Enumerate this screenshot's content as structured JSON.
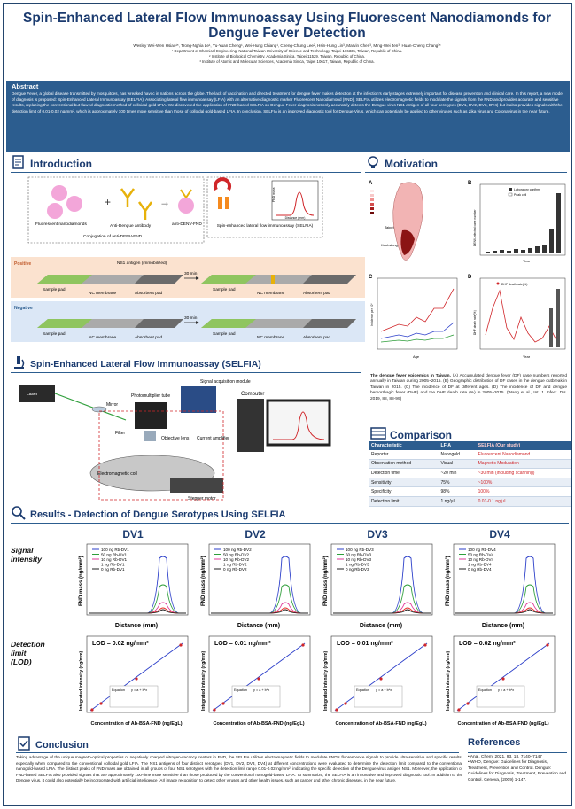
{
  "header": {
    "title_line1": "Spin-Enhanced Lateral Flow Immunoassay Using Fluorescent Nanodiamonds for",
    "title_line2": "Dengue Fever Detection",
    "authors": "Wesley Wei-Wen Hsiao¹*, Trong-Nghia Le¹, Yu-Yuan Cheng¹, Wei-Hung Chiang¹, Cheng-Chung Lee², Hsin-Hung Lin³, Marvin Chen³, Ming-Wei Jen³, Huan-Cheng Chang³*",
    "affil1": "¹ Department of Chemical Engineering, National Taiwan University of Science and Technology, Taipei 106335, Taiwan, Republic of China.",
    "affil2": "² Institute of Biological Chemistry, Academia Sinica, Taipei 11529, Taiwan, Republic of China.",
    "affil3": "³ Institute of Atomic and Molecular Sciences, Academia Sinica, Taipei 10617, Taiwan, Republic of China."
  },
  "abstract": {
    "heading": "Abstract",
    "text": "Dengue Fever, a global disease transmitted by mosquitoes, has wreaked havoc in nations across the globe. The lack of vaccination and directed treatment for dengue fever makes detection at the infection's early stages extremely important for disease prevention and clinical care. In this report, a new model of diagnosis is proposed: Spin-Enhanced Lateral Immunoassay (SELFIA). Associating lateral flow immunoassay (LFIA) with an alternative diagnostic marker Fluorescent Nanodiamond (FND), SELFIA utilizes electromagnetic fields to modulate the signals from the FND and provides accurate and sensitive results, replacing the conventional but flawed diagnostic method of colloidal gold LFIA. We discovered the application of FND-based SELFIA on Dengue Fever diagnosis not only accurately detects the Dengue virus NS1 antigen of all four serotypes (DV1, DV2, DV3, DV4) but it also provides signals with the detection limit of 0.01-0.02 ng/mm², which is approximately 100 times more sensitive than those of colloidal gold-based LFIA. In conclusion, SELFIA is an improved diagnostic tool for Dengue Virus, which can potentially be applied to other viruses such as Zika virus and Coronavirus in the near future."
  },
  "intro": {
    "heading": "Introduction",
    "fnd": "Fluorescent nanodiamonds",
    "antibody": "Anti-Dengue antibody",
    "anti_fnd": "anti-DENV-FND",
    "conjugation": "Conjugation of anti-DENV-FND",
    "selfia_box": "Spin-enhanced lateral flow immunoassay (SELFIA)",
    "ylab": "FND mass",
    "xlab": "Distance (mm)",
    "positive": "Positive",
    "negative": "Negative",
    "ns1": "NS1 antigen (immobilized)",
    "sample_pad": "Sample pad",
    "nc_membrane": "NC membrane",
    "absorbent_pad": "Absorbent pad",
    "time": "30 min"
  },
  "motivation": {
    "heading": "Motivation",
    "panel_a": "A",
    "panel_b": "B",
    "panel_c": "C",
    "panel_d": "D",
    "taipei": "Taipei",
    "kaohsiung": "Kaohsiung",
    "legend_b1": "Laboratory confirm",
    "legend_b2": "Peak cell",
    "ylab_b": "DENV-infected case number",
    "ylab_c": "Incidence per 10⁵",
    "ylab_d": "DHF death rate(%)",
    "xlab": "Year",
    "legend_d": "DHF death rate(%)",
    "age_label": "Age",
    "caption_bold": "The dengue fever epidemics in Taiwan.",
    "caption": " (A) Accumulated dengue fever (DF) case numbers reported annually in Taiwan during 2005~2015. (B) Geographic distribution of DF cases in the dengue outbreak in Taiwan in 2015. (C) The incidence of DF at different ages. (D) The incidence of DF and dengue hemorrhagic fever (DHF) and the DHF death rate (%) in 2005~2015. (Wang et al., Int. J. Infect. Dis. 2019, 88, 88-99)"
  },
  "selfia": {
    "heading": "Spin-Enhanced Lateral Flow Immunoassay (SELFIA)",
    "laser": "Laser",
    "mirror": "Mirror",
    "photomultiplier": "Photomultiplier tube",
    "signal_module": "Signal acquisition module",
    "computer": "Computer",
    "filter": "Filter",
    "objective": "Objective lens",
    "current": "Current amplifier",
    "coil": "Electromagnetic coil",
    "stepper": "Stepper motor"
  },
  "comparison": {
    "heading": "Comparison",
    "columns": [
      "Characteristic",
      "LFIA",
      "SELFIA (Our study)"
    ],
    "rows": [
      [
        "Reporter",
        "Nanogold",
        "Fluorescent Nanodiamond"
      ],
      [
        "Observation method",
        "Visual",
        "Magnetic Modulation"
      ],
      [
        "Detection time",
        "~20 min",
        "~30 min (including scanning)"
      ],
      [
        "Sensitivity",
        "75%",
        "~100%"
      ],
      [
        "Specificity",
        "98%",
        "100%"
      ],
      [
        "Detection limit",
        "1 ng/µL",
        "0.01-0.1 ng/µL"
      ]
    ]
  },
  "results": {
    "heading": "Results - Detection of Dengue Serotypes Using SELFIA",
    "row1_label_a": "Signal",
    "row1_label_b": "intensity",
    "row2_label_a": "Detection",
    "row2_label_b": "limit",
    "row2_label_c": "(LOD)",
    "signal_ylab": "FND mass (ng/mm²)",
    "signal_xlab": "Distance (mm)",
    "lod_ylab": "Integrated intensity (ng/mm)",
    "lod_xlab": "Concentration of Ab-BSA-FND (ng/EgL)",
    "equation_label": "Equation",
    "equation": "y = a + b*x",
    "panels": [
      {
        "name": "DV1",
        "lod": "LOD = 0.02 ng/mm²",
        "legend": [
          "100 ng Rb-DV1",
          "50 ng Rb-DV1",
          "10 ng Rb-DV1",
          "1 ng Rb-DV1",
          "0 ng Rb-DV1"
        ]
      },
      {
        "name": "DV2",
        "lod": "LOD = 0.01 ng/mm²",
        "legend": [
          "100 ng Rb-DV2",
          "50 ng Rb-DV2",
          "10 ng Rb-DV2",
          "1 ng Rb-DV2",
          "0 ng Rb-DV2"
        ]
      },
      {
        "name": "DV3",
        "lod": "LOD = 0.01 ng/mm²",
        "legend": [
          "100 ng Rb-DV3",
          "50 ng Rb-DV3",
          "10 ng Rb-DV3",
          "1 ng Rb-DV3",
          "0 ng Rb-DV3"
        ]
      },
      {
        "name": "DV4",
        "lod": "LOD = 0.02 ng/mm²",
        "legend": [
          "100 ng Rb-DV4",
          "50 ng Rb-DV4",
          "10 ng Rb-DV4",
          "1 ng Rb-DV4",
          "0 ng Rb-DV4"
        ]
      }
    ],
    "series_colors": [
      "#2b3ec9",
      "#2e9e3a",
      "#e03a9a",
      "#e8342e",
      "#222222"
    ]
  },
  "conclusion": {
    "heading": "Conclusion",
    "text": "Taking advantage of the unique magneto-optical properties of negatively charged nitrogen-vacancy centers in FND, the SELFIA utilizes electromagnetic fields to modulate FND's fluorescence signals to provide ultra-sensitive and specific results, especially when compared to the conventional colloidal gold LFIA. The NS1 antigens of four distinct serotypes (DV1, DV2, DV3, DV4) at different concentrations were evaluated to determine the detection limit compared to the conventional nanogold-based LFIA. The distinct peaks of FND mass are obtained in all groups of four NS1 serotypes with the detection limit range 0.01-0.02 ng/mm², indicating the specific detection of the Dengue virus antigen NS1. Moreover, the application of FND-based SELFIA also provided signals that are approximately 100-time more sensitive than those produced by the conventional nanogold-based LFIA. To summarize, the SELFIA is an innovative and improved diagnostic tool. In addition to the Dengue virus, it could also potentially be incorporated with artificial intelligence (AI) image recognition to detect other viruses and other health issues, such as cancer and other chronic diseases, in the near future."
  },
  "references": {
    "heading": "References",
    "items": [
      "• Anal. Chem. 2021, 93, 18, 7140–7147",
      "• WHO, Dengue: Guidelines for Diagnosis, Treatment, Prevention and Control. Dengue: Guidelines for Diagnosis, Treatment, Prevention and Control. Geneva, (2009) 1-147."
    ]
  }
}
